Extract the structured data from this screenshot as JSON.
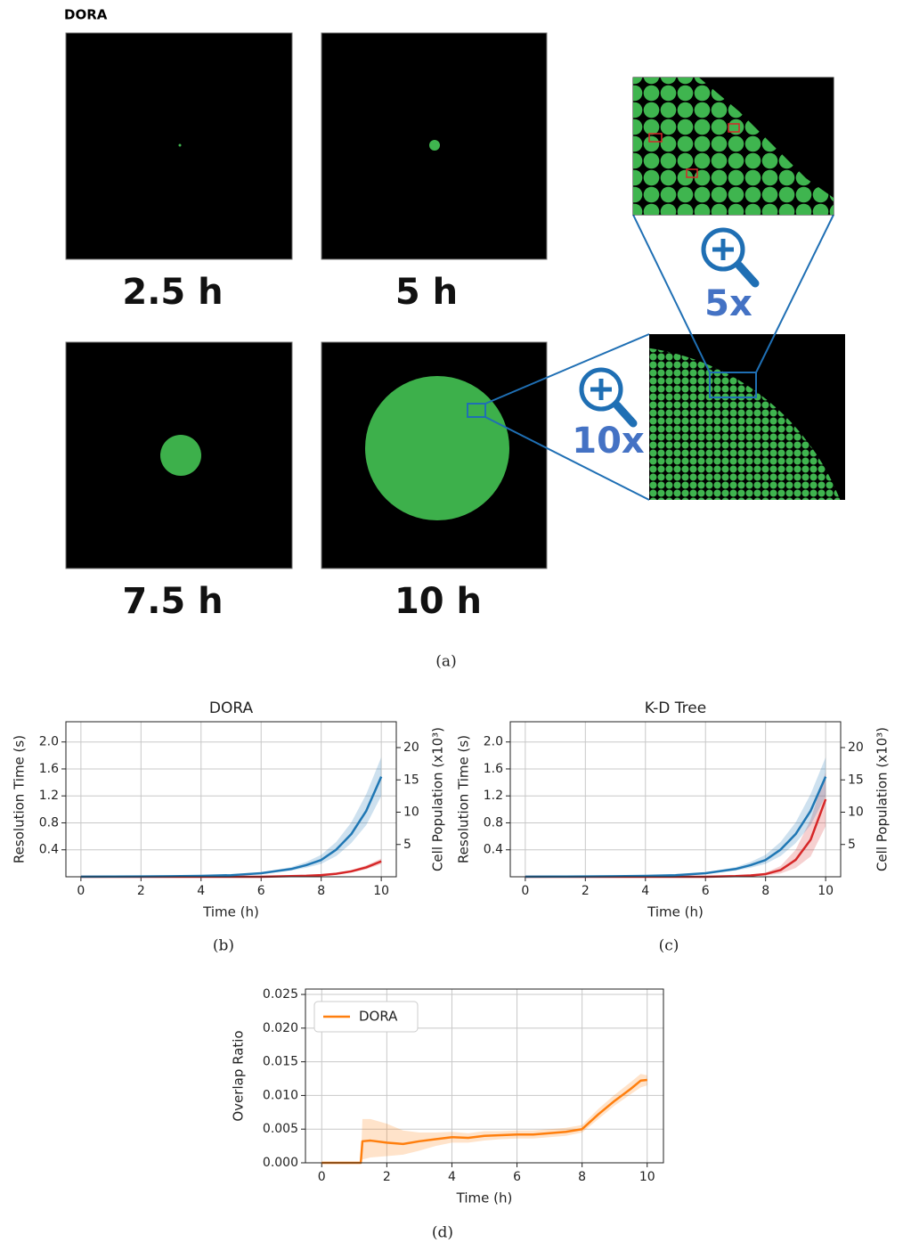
{
  "panel_a": {
    "title": "DORA",
    "snapshots": [
      "2.5 h",
      "5 h",
      "7.5 h",
      "10 h"
    ],
    "zooms": [
      "5x",
      "10x"
    ],
    "caption": "(a)"
  },
  "chart_data": [
    {
      "type": "line",
      "title": "DORA",
      "caption": "(b)",
      "xlabel": "Time (h)",
      "ylabel": "Resolution Time (s)",
      "y2label": "Cell Population (x10³)",
      "x": [
        0,
        1,
        2,
        3,
        4,
        5,
        6,
        7,
        7.5,
        8,
        8.5,
        9,
        9.5,
        10
      ],
      "xlim": [
        -0.5,
        10.5
      ],
      "xticks": [
        0,
        2,
        4,
        6,
        8,
        10
      ],
      "ylim": [
        0,
        2.3
      ],
      "yticks": [
        0.4,
        0.8,
        1.2,
        1.6,
        {
          "value": 2,
          "label": "2.0"
        }
      ],
      "y2lim": [
        0,
        24
      ],
      "y2ticks": [
        5,
        10,
        15,
        20
      ],
      "grid": true,
      "series": [
        {
          "color": "#d62728",
          "axis": "y",
          "values": [
            0,
            0,
            0,
            0,
            0,
            0,
            0,
            0.01,
            0.015,
            0.025,
            0.045,
            0.08,
            0.14,
            0.23
          ],
          "lower": [
            0,
            0,
            0,
            0,
            0,
            0,
            0,
            0.008,
            0.012,
            0.02,
            0.035,
            0.065,
            0.11,
            0.19
          ],
          "upper": [
            0,
            0,
            0,
            0,
            0,
            0,
            0,
            0.012,
            0.018,
            0.03,
            0.055,
            0.1,
            0.17,
            0.27
          ]
        },
        {
          "color": "#1f77b4",
          "axis": "y2",
          "values": [
            0.02,
            0.03,
            0.05,
            0.08,
            0.13,
            0.25,
            0.55,
            1.2,
            1.8,
            2.6,
            4.2,
            6.6,
            10.2,
            15.5
          ],
          "lower": [
            0.02,
            0.03,
            0.04,
            0.07,
            0.11,
            0.2,
            0.45,
            0.95,
            1.4,
            2,
            3.2,
            5.2,
            8,
            12.5
          ],
          "upper": [
            0.02,
            0.03,
            0.06,
            0.1,
            0.16,
            0.3,
            0.68,
            1.5,
            2.3,
            3.4,
            5.4,
            8.4,
            12.8,
            18.5
          ]
        }
      ]
    },
    {
      "type": "line",
      "title": "K-D Tree",
      "caption": "(c)",
      "xlabel": "Time (h)",
      "ylabel": "Resolution Time (s)",
      "y2label": "Cell Population (x10³)",
      "x": [
        0,
        1,
        2,
        3,
        4,
        5,
        6,
        7,
        7.5,
        8,
        8.5,
        9,
        9.5,
        10
      ],
      "xlim": [
        -0.5,
        10.5
      ],
      "xticks": [
        0,
        2,
        4,
        6,
        8,
        10
      ],
      "ylim": [
        0,
        2.3
      ],
      "yticks": [
        0.4,
        0.8,
        1.2,
        1.6,
        {
          "value": 2,
          "label": "2.0"
        }
      ],
      "y2lim": [
        0,
        24
      ],
      "y2ticks": [
        5,
        10,
        15,
        20
      ],
      "grid": true,
      "series": [
        {
          "color": "#d62728",
          "axis": "y",
          "values": [
            0,
            0,
            0,
            0,
            0,
            0,
            0,
            0.01,
            0.02,
            0.04,
            0.1,
            0.25,
            0.55,
            1.15
          ],
          "lower": [
            0,
            0,
            0,
            0,
            0,
            0,
            0,
            0.005,
            0.01,
            0.02,
            0.05,
            0.13,
            0.3,
            0.75
          ],
          "upper": [
            0,
            0,
            0,
            0,
            0,
            0,
            0,
            0.015,
            0.03,
            0.06,
            0.16,
            0.4,
            0.85,
            1.55
          ]
        },
        {
          "color": "#1f77b4",
          "axis": "y2",
          "values": [
            0.02,
            0.03,
            0.05,
            0.08,
            0.13,
            0.25,
            0.55,
            1.2,
            1.8,
            2.6,
            4.2,
            6.6,
            10.2,
            15.5
          ],
          "lower": [
            0.02,
            0.03,
            0.04,
            0.07,
            0.11,
            0.2,
            0.45,
            0.95,
            1.4,
            2,
            3.2,
            5.2,
            8,
            12.5
          ],
          "upper": [
            0.02,
            0.03,
            0.06,
            0.1,
            0.16,
            0.3,
            0.68,
            1.5,
            2.3,
            3.4,
            5.4,
            8.4,
            12.8,
            18.5
          ]
        }
      ]
    },
    {
      "type": "line",
      "caption": "(d)",
      "xlabel": "Time (h)",
      "ylabel": "Overlap Ratio",
      "x": [
        0,
        1.2,
        1.25,
        1.5,
        2,
        2.5,
        3,
        3.5,
        4,
        4.5,
        5,
        5.5,
        6,
        6.5,
        7,
        7.5,
        8,
        8.5,
        9,
        9.5,
        9.8,
        10
      ],
      "xlim": [
        -0.5,
        10.5
      ],
      "xticks": [
        0,
        2,
        4,
        6,
        8,
        10
      ],
      "ylim": [
        0,
        0.0258
      ],
      "yticks": [
        {
          "value": 0,
          "label": "0.000"
        },
        {
          "value": 0.005,
          "label": "0.005"
        },
        {
          "value": 0.01,
          "label": "0.010"
        },
        {
          "value": 0.015,
          "label": "0.015"
        },
        {
          "value": 0.02,
          "label": "0.020"
        },
        {
          "value": 0.025,
          "label": "0.025"
        }
      ],
      "grid": true,
      "legend": "upper left",
      "series": [
        {
          "name": "DORA",
          "color": "#ff7f0e",
          "axis": "y",
          "values": [
            0,
            0,
            0.0032,
            0.0033,
            0.003,
            0.0028,
            0.0032,
            0.0035,
            0.0038,
            0.0037,
            0.004,
            0.0041,
            0.0042,
            0.0042,
            0.0044,
            0.0046,
            0.005,
            0.0072,
            0.0092,
            0.011,
            0.0122,
            0.0123
          ],
          "lower": [
            0,
            0,
            0.0005,
            0.0008,
            0.001,
            0.0012,
            0.0018,
            0.0025,
            0.003,
            0.003,
            0.0033,
            0.0035,
            0.0036,
            0.0036,
            0.0038,
            0.004,
            0.0045,
            0.0065,
            0.0085,
            0.0102,
            0.0112,
            0.0115
          ],
          "upper": [
            0,
            0,
            0.0065,
            0.0065,
            0.0058,
            0.0048,
            0.0045,
            0.0045,
            0.0046,
            0.0044,
            0.0047,
            0.0047,
            0.0048,
            0.0048,
            0.005,
            0.0052,
            0.0056,
            0.008,
            0.0101,
            0.012,
            0.0132,
            0.013
          ]
        }
      ]
    }
  ]
}
